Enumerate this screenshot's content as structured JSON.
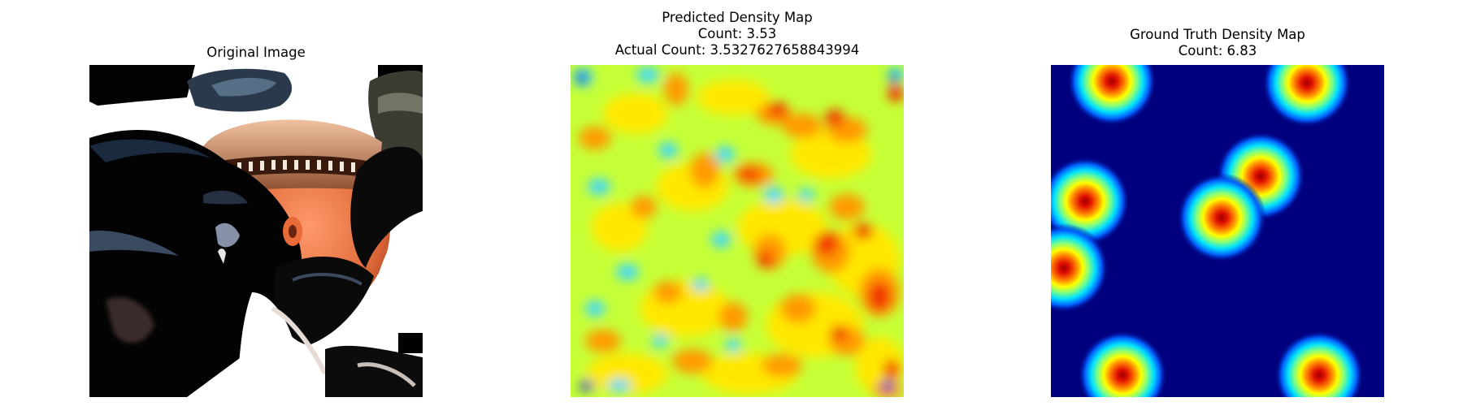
{
  "panels": [
    {
      "title_lines": [
        "Original Image"
      ],
      "image": "crowd-photo"
    },
    {
      "title_lines": [
        "Predicted Density Map",
        "Count: 3.53",
        "Actual Count: 3.5327627658843994"
      ],
      "image": "density-heatmap",
      "colormap": "jet"
    },
    {
      "title_lines": [
        "Ground Truth Density Map",
        "Count: 6.83"
      ],
      "image": "density-heatmap",
      "colormap": "jet"
    }
  ],
  "colors": {
    "jet_low": "#00007f",
    "jet_high": "#d00000"
  }
}
